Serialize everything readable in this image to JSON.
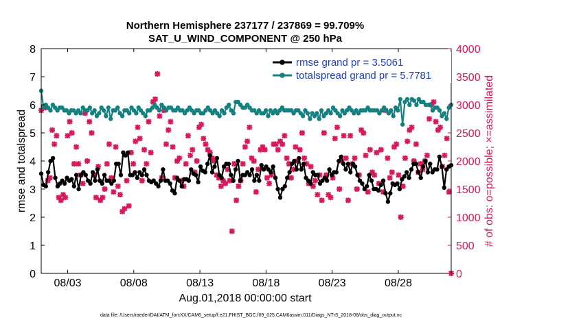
{
  "chart_data": {
    "type": "line",
    "title": "Northern Hemisphere 237177 / 237869 = 99.709%",
    "subtitle": "SAT_U_WIND_COMPONENT @ 250 hPa",
    "xlabel": "Aug.01,2018 00:00:00 start",
    "ylabel_left": "rmse and totalspread",
    "ylabel_right": "# of obs: o=possible; ×=assimilated",
    "x_ticks": [
      "08/03",
      "08/08",
      "08/13",
      "08/18",
      "08/23",
      "08/28"
    ],
    "x_tick_days": [
      3,
      8,
      13,
      18,
      23,
      28
    ],
    "xlim": [
      1,
      32
    ],
    "ylim_left": [
      0,
      8
    ],
    "y_ticks_left": [
      "0",
      "1",
      "2",
      "3",
      "4",
      "5",
      "6",
      "7",
      "8"
    ],
    "ylim_right": [
      0,
      4000
    ],
    "y_ticks_right": [
      "0",
      "500",
      "1000",
      "1500",
      "2000",
      "2500",
      "3000",
      "3500",
      "4000"
    ],
    "colors": {
      "rmse": "#000000",
      "spread": "#148080",
      "obs": "#d8185c",
      "legend_text": "#1f3fbf"
    },
    "series": [
      {
        "name": "rmse grand pr = 3.5061",
        "values": [
          3.55,
          3.15,
          3.1,
          3.6,
          4.0,
          4.1,
          3.4,
          3.1,
          3.2,
          3.3,
          3.2,
          3.4,
          3.3,
          3.35,
          3.1,
          3.5,
          3.0,
          3.5,
          3.6,
          3.5,
          3.3,
          3.2,
          3.6,
          3.3,
          3.7,
          3.3,
          3.2,
          3.5,
          3.3,
          3.3,
          3.2,
          3.3,
          3.9,
          3.9,
          3.5,
          4.3,
          4.2,
          4.3,
          3.5,
          3.5,
          3.6,
          3.4,
          3.6,
          3.5,
          3.7,
          3.5,
          3.3,
          3.25,
          3.3,
          3.2,
          3.1,
          3.3,
          3.7,
          3.3,
          3.3,
          3.2,
          2.95,
          2.85,
          3.4,
          3.3,
          3.1,
          3.35,
          3.35,
          3.3,
          3.7,
          3.55,
          3.5,
          3.25,
          3.8,
          3.65,
          3.6,
          3.9,
          4.2,
          3.6,
          3.8,
          4.1,
          3.5,
          3.4,
          3.8,
          3.9,
          3.9,
          3.5,
          3.3,
          3.7,
          4.0,
          3.3,
          3.5,
          3.5,
          3.6,
          3.5,
          3.7,
          3.3,
          3.5,
          3.3,
          3.85,
          3.7,
          3.8,
          3.7,
          3.6,
          3.8,
          3.4,
          3.0,
          2.7,
          3.0,
          3.1,
          3.4,
          3.6,
          3.9,
          4.0,
          3.7,
          4.1,
          3.7,
          3.9,
          3.4,
          3.3,
          3.2,
          3.6,
          3.5,
          3.5,
          3.2,
          3.3,
          3.4,
          3.3,
          3.7,
          3.5,
          3.6,
          3.6,
          4.0,
          4.15,
          3.9,
          3.7,
          3.9,
          3.6,
          3.9,
          3.8,
          3.5,
          3.3,
          3.2,
          3.0,
          3.1,
          3.5,
          3.3,
          3.0,
          3.0,
          2.95,
          3.15,
          3.3,
          2.85,
          2.55,
          2.85,
          3.2,
          3.15,
          3.2,
          3.0,
          3.35,
          3.45,
          3.6,
          3.4,
          3.7,
          3.9,
          3.9,
          3.6,
          3.4,
          3.8,
          4.0,
          3.6,
          3.9,
          3.6,
          3.7,
          3.7,
          4.15,
          3.8,
          3.05,
          3.7,
          3.8,
          3.85
        ]
      },
      {
        "name": "totalspread grand pr = 5.7781",
        "values": [
          6.5,
          5.9,
          6.0,
          5.9,
          5.8,
          6.0,
          5.9,
          5.8,
          5.9,
          5.9,
          5.8,
          5.8,
          5.7,
          5.8,
          5.8,
          5.7,
          5.8,
          5.7,
          5.9,
          5.8,
          5.8,
          5.9,
          5.7,
          5.8,
          5.6,
          5.7,
          5.9,
          5.8,
          5.6,
          5.9,
          5.5,
          5.8,
          5.8,
          5.9,
          5.7,
          5.6,
          5.8,
          5.8,
          5.7,
          5.9,
          5.8,
          5.7,
          5.9,
          5.8,
          5.7,
          5.6,
          5.8,
          5.8,
          5.9,
          6.0,
          5.9,
          5.8,
          6.0,
          5.9,
          5.8,
          5.9,
          5.9,
          5.8,
          5.8,
          5.9,
          5.8,
          5.8,
          5.7,
          5.8,
          5.9,
          5.8,
          5.7,
          5.8,
          5.8,
          5.7,
          5.7,
          5.8,
          5.9,
          5.8,
          5.7,
          5.8,
          5.7,
          5.6,
          5.8,
          5.7,
          5.9,
          6.0,
          5.8,
          5.7,
          6.1,
          6.1,
          6.0,
          5.9,
          5.9,
          6.0,
          5.9,
          5.8,
          5.8,
          5.7,
          5.8,
          5.7,
          5.7,
          5.8,
          5.6,
          5.8,
          5.7,
          5.8,
          5.7,
          5.8,
          5.9,
          5.8,
          5.8,
          5.8,
          5.8,
          5.7,
          5.8,
          5.8,
          5.7,
          5.6,
          5.8,
          5.7,
          5.5,
          5.7,
          5.6,
          5.7,
          5.5,
          5.8,
          5.6,
          5.7,
          5.8,
          5.7,
          5.9,
          5.8,
          5.7,
          5.6,
          5.8,
          5.7,
          5.8,
          5.9,
          5.8,
          5.7,
          5.8,
          5.7,
          5.8,
          5.8,
          5.8,
          5.9,
          5.8,
          5.8,
          5.8,
          5.8,
          5.7,
          5.8,
          5.9,
          5.8,
          5.7,
          5.8,
          5.6,
          5.9,
          5.8,
          6.2,
          5.3,
          6.1,
          6.2,
          6.0,
          6.2,
          6.15,
          6.0,
          6.2,
          6.1,
          6.1,
          6.0,
          6.0,
          6.0,
          5.8,
          5.9,
          5.9,
          5.8,
          5.6,
          5.7,
          5.5,
          5.9,
          6.0
        ]
      },
      {
        "name": "obs possible/assimilated (right axis)",
        "values": [
          2900,
          2950,
          2950,
          1650,
          1700,
          2550,
          2300,
          2450,
          1350,
          1300,
          1400,
          1350,
          2450,
          2700,
          2500,
          1950,
          2250,
          1950,
          1750,
          1600,
          2850,
          2000,
          2700,
          2500,
          1750,
          1350,
          1900,
          1300,
          1350,
          1500,
          1950,
          2300,
          1700,
          1450,
          2250,
          1550,
          1400,
          1100,
          1150,
          1650,
          1200,
          2150,
          1950,
          2350,
          2600,
          2400,
          1650,
          2200,
          1950,
          2700,
          2150,
          3050,
          3100,
          3550,
          2800,
          1700,
          2900,
          2300,
          2550,
          2700,
          2250,
          1700,
          2000,
          2050,
          1650,
          1550,
          1950,
          2450,
          2100,
          2200,
          1800,
          2000,
          2600,
          2650,
          2400,
          2300,
          2200,
          2150,
          2050,
          2000,
          1750,
          1700,
          1550,
          1650,
          1600,
          1850,
          1650,
          750,
          1950,
          1300,
          1550,
          1650,
          1950,
          2250,
          2350,
          2600,
          2050,
          2000,
          1450,
          1850,
          2200,
          2250,
          2200,
          1700,
          1600,
          1750,
          2300,
          2300,
          2200,
          2350,
          2300,
          2450,
          2050,
          1950,
          1700,
          1850,
          2250,
          2000,
          2200,
          2500,
          2050,
          1950,
          1600,
          1900,
          1550,
          1650,
          1400,
          1750,
          1300,
          2500,
          1750,
          1400,
          1350,
          1700,
          2400,
          2600,
          1500,
          2000,
          2450,
          2050,
          1300,
          2450,
          1950,
          2050,
          1500,
          1750,
          2550,
          2500,
          2100,
          1450,
          2200,
          1800,
          1750,
          2150,
          1600,
          2200,
          1450,
          2900,
          2050,
          1700,
          1800,
          2250,
          2300,
          1750,
          1000,
          1550,
          2050,
          2350,
          2550,
          2600,
          2000,
          2300,
          1800,
          1950,
          1850,
          2000,
          2100,
          2750,
          3000,
          3050,
          2700,
          2550,
          2600,
          1900,
          2100,
          2400,
          1450,
          0
        ]
      }
    ],
    "legend": [
      {
        "label": "rmse grand pr = 3.5061"
      },
      {
        "label": "totalspread grand pr = 5.7781"
      }
    ],
    "legend_position": "top-right",
    "footnote": "data file: /Users/raeder/DAI/ATM_forcXX/CAM6_setup/f.e21.FHIST_BGC.f09_025.CAM6assim.011/Diags_NTrS_2018-08/obs_diag_output.nc"
  }
}
